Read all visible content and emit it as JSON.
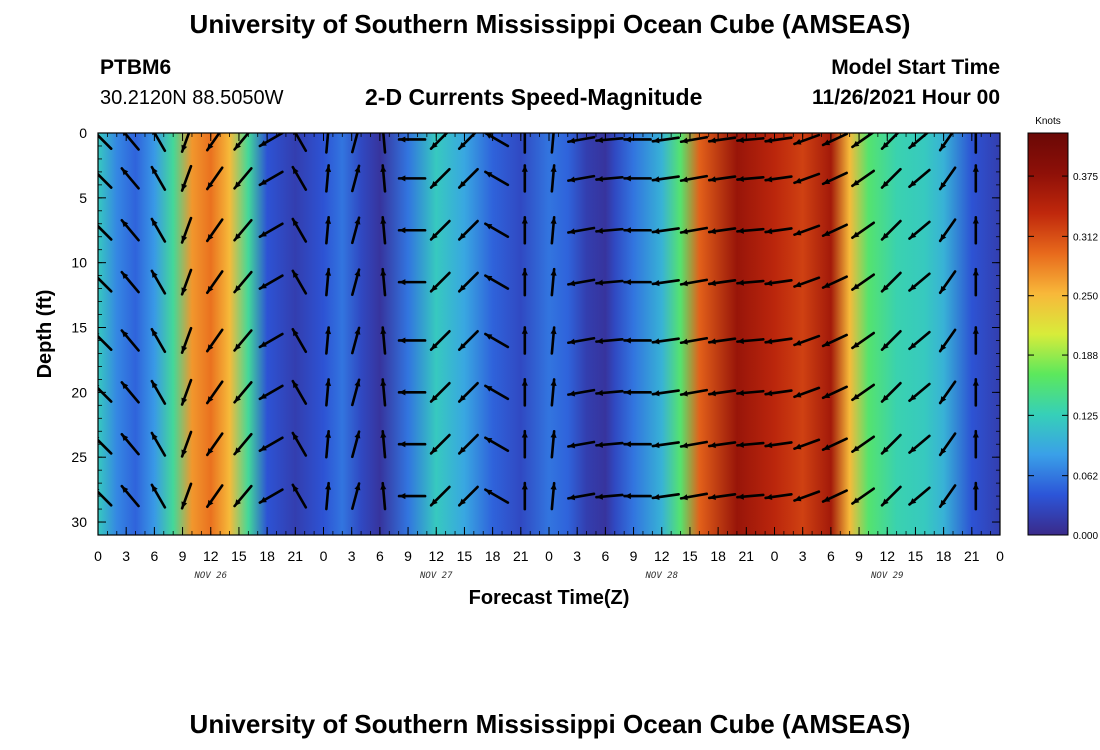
{
  "header": {
    "title": "University of Southern Mississippi Ocean Cube (AMSEAS)",
    "station_id": "PTBM6",
    "station_coords": "30.2120N  88.5050W",
    "plot_title": "2-D Currents Speed-Magnitude",
    "model_start_label": "Model Start Time",
    "model_start_value": "11/26/2021 Hour 00"
  },
  "footer": {
    "repeated_title": "University of Southern Mississippi Ocean Cube (AMSEAS)"
  },
  "chart_data": {
    "type": "heatmap",
    "title": "2-D Currents Speed-Magnitude",
    "xlabel": "Forecast Time(Z)",
    "ylabel": "Depth (ft)",
    "x_tick_labels": [
      "0",
      "3",
      "6",
      "9",
      "12",
      "15",
      "18",
      "21",
      "0",
      "3",
      "6",
      "9",
      "12",
      "15",
      "18",
      "21",
      "0",
      "3",
      "6",
      "9",
      "12",
      "15",
      "18",
      "21",
      "0",
      "3",
      "6",
      "9",
      "12",
      "15",
      "18",
      "21",
      "0"
    ],
    "date_labels": [
      {
        "label": "NOV 26",
        "hour": 12
      },
      {
        "label": "NOV 27",
        "hour": 36
      },
      {
        "label": "NOV 28",
        "hour": 60
      },
      {
        "label": "NOV 29",
        "hour": 84
      }
    ],
    "xlim_hours": [
      0,
      96
    ],
    "y_ticks": [
      "0",
      "5",
      "10",
      "15",
      "20",
      "25",
      "30"
    ],
    "ylim_ft": [
      0,
      31
    ],
    "colorbar": {
      "units": "Knots",
      "range": [
        0,
        0.42
      ],
      "ticks": [
        "0.000",
        "0.062",
        "0.125",
        "0.188",
        "0.250",
        "0.312",
        "0.375"
      ],
      "stops": [
        "#3a2a8a",
        "#2c55d8",
        "#3aa0e8",
        "#36d0b8",
        "#5ce85c",
        "#d8ec3a",
        "#f8b83a",
        "#e86a1c",
        "#c0280c",
        "#8e1008",
        "#6a0806"
      ]
    },
    "speed_profile_knots": [
      {
        "hour": 0,
        "speed": 0.12
      },
      {
        "hour": 2,
        "speed": 0.07
      },
      {
        "hour": 4,
        "speed": 0.05
      },
      {
        "hour": 6,
        "speed": 0.08
      },
      {
        "hour": 8,
        "speed": 0.14
      },
      {
        "hour": 10,
        "speed": 0.27
      },
      {
        "hour": 12,
        "speed": 0.29
      },
      {
        "hour": 14,
        "speed": 0.25
      },
      {
        "hour": 16,
        "speed": 0.14
      },
      {
        "hour": 18,
        "speed": 0.04
      },
      {
        "hour": 21,
        "speed": 0.02
      },
      {
        "hour": 24,
        "speed": 0.04
      },
      {
        "hour": 26,
        "speed": 0.06
      },
      {
        "hour": 28,
        "speed": 0.03
      },
      {
        "hour": 30,
        "speed": 0.01
      },
      {
        "hour": 33,
        "speed": 0.06
      },
      {
        "hour": 36,
        "speed": 0.12
      },
      {
        "hour": 39,
        "speed": 0.09
      },
      {
        "hour": 42,
        "speed": 0.05
      },
      {
        "hour": 45,
        "speed": 0.03
      },
      {
        "hour": 48,
        "speed": 0.06
      },
      {
        "hour": 50,
        "speed": 0.05
      },
      {
        "hour": 52,
        "speed": 0.02
      },
      {
        "hour": 54,
        "speed": 0.01
      },
      {
        "hour": 55,
        "speed": 0.03
      },
      {
        "hour": 57,
        "speed": 0.06
      },
      {
        "hour": 60,
        "speed": 0.1
      },
      {
        "hour": 62,
        "speed": 0.16
      },
      {
        "hour": 64,
        "speed": 0.3
      },
      {
        "hour": 68,
        "speed": 0.37
      },
      {
        "hour": 72,
        "speed": 0.34
      },
      {
        "hour": 75,
        "speed": 0.32
      },
      {
        "hour": 78,
        "speed": 0.36
      },
      {
        "hour": 80,
        "speed": 0.25
      },
      {
        "hour": 82,
        "speed": 0.16
      },
      {
        "hour": 85,
        "speed": 0.13
      },
      {
        "hour": 88,
        "speed": 0.12
      },
      {
        "hour": 90,
        "speed": 0.1
      },
      {
        "hour": 93,
        "speed": 0.04
      },
      {
        "hour": 96,
        "speed": 0.02
      }
    ],
    "arrow_depths_ft": [
      0.5,
      3.5,
      7.5,
      11.5,
      16,
      20,
      24,
      28
    ],
    "arrow_directions_deg": [
      {
        "hour": 0,
        "dir": 315
      },
      {
        "hour": 3,
        "dir": 320
      },
      {
        "hour": 6,
        "dir": 330
      },
      {
        "hour": 9,
        "dir": 200
      },
      {
        "hour": 12,
        "dir": 215
      },
      {
        "hour": 15,
        "dir": 220
      },
      {
        "hour": 18,
        "dir": 240
      },
      {
        "hour": 21,
        "dir": 330
      },
      {
        "hour": 24,
        "dir": 5
      },
      {
        "hour": 27,
        "dir": 15
      },
      {
        "hour": 30,
        "dir": 355
      },
      {
        "hour": 33,
        "dir": 270
      },
      {
        "hour": 36,
        "dir": 225
      },
      {
        "hour": 39,
        "dir": 225
      },
      {
        "hour": 42,
        "dir": 300
      },
      {
        "hour": 45,
        "dir": 0
      },
      {
        "hour": 48,
        "dir": 5
      },
      {
        "hour": 51,
        "dir": 260
      },
      {
        "hour": 54,
        "dir": 265
      },
      {
        "hour": 57,
        "dir": 270
      },
      {
        "hour": 60,
        "dir": 262
      },
      {
        "hour": 63,
        "dir": 260
      },
      {
        "hour": 66,
        "dir": 262
      },
      {
        "hour": 69,
        "dir": 265
      },
      {
        "hour": 72,
        "dir": 262
      },
      {
        "hour": 75,
        "dir": 250
      },
      {
        "hour": 78,
        "dir": 245
      },
      {
        "hour": 81,
        "dir": 235
      },
      {
        "hour": 84,
        "dir": 225
      },
      {
        "hour": 87,
        "dir": 230
      },
      {
        "hour": 90,
        "dir": 215
      },
      {
        "hour": 93,
        "dir": 0
      }
    ]
  }
}
